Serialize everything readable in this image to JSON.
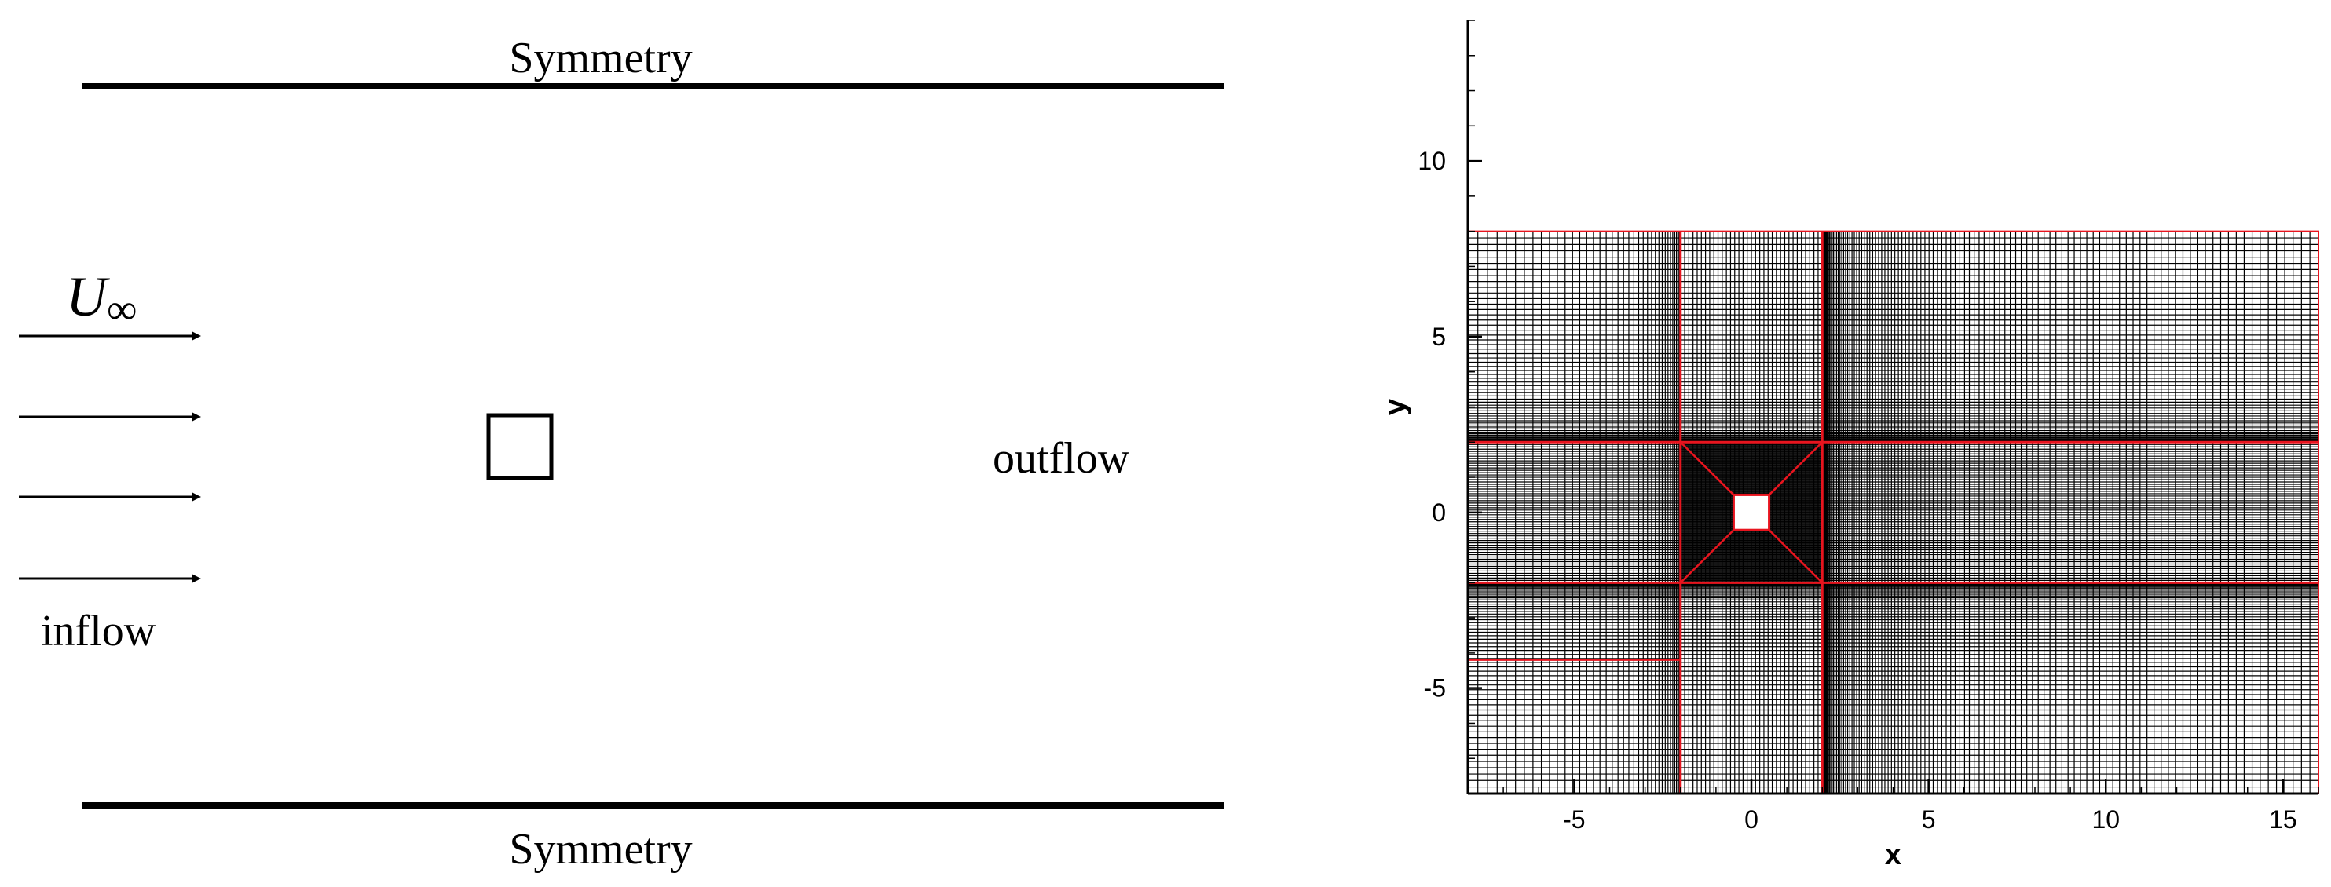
{
  "schematic": {
    "top_boundary_label": "Symmetry",
    "bottom_boundary_label": "Symmetry",
    "inflow_label": "inflow",
    "outflow_label": "outflow",
    "freestream_symbol": "U",
    "freestream_subscript": "∞",
    "arrow_count": 4
  },
  "mesh_plot": {
    "xlabel": "x",
    "ylabel": "y",
    "xlim": [
      -8,
      16
    ],
    "ylim": [
      -8,
      14
    ],
    "x_ticks": [
      -5,
      0,
      5,
      10,
      15
    ],
    "y_ticks": [
      -5,
      0,
      5,
      10
    ],
    "x_tick_labels": [
      "-5",
      "0",
      "5",
      "10",
      "15"
    ],
    "y_tick_labels": [
      "-5",
      "0",
      "5",
      "10"
    ],
    "domain": {
      "x": [
        -8,
        16
      ],
      "y": [
        -8,
        8
      ]
    },
    "cylinder": {
      "x": [
        -0.5,
        0.5
      ],
      "y": [
        -0.5,
        0.5
      ]
    },
    "refined_block": {
      "x": [
        -2,
        2
      ],
      "y": [
        -2,
        2
      ]
    },
    "block_boundary_x": [
      -2,
      2
    ],
    "block_boundary_y": [
      -2,
      2
    ],
    "extra_block_line_y": -4.2,
    "colors": {
      "grid": "#000000",
      "block_boundary": "#e8141e"
    }
  }
}
